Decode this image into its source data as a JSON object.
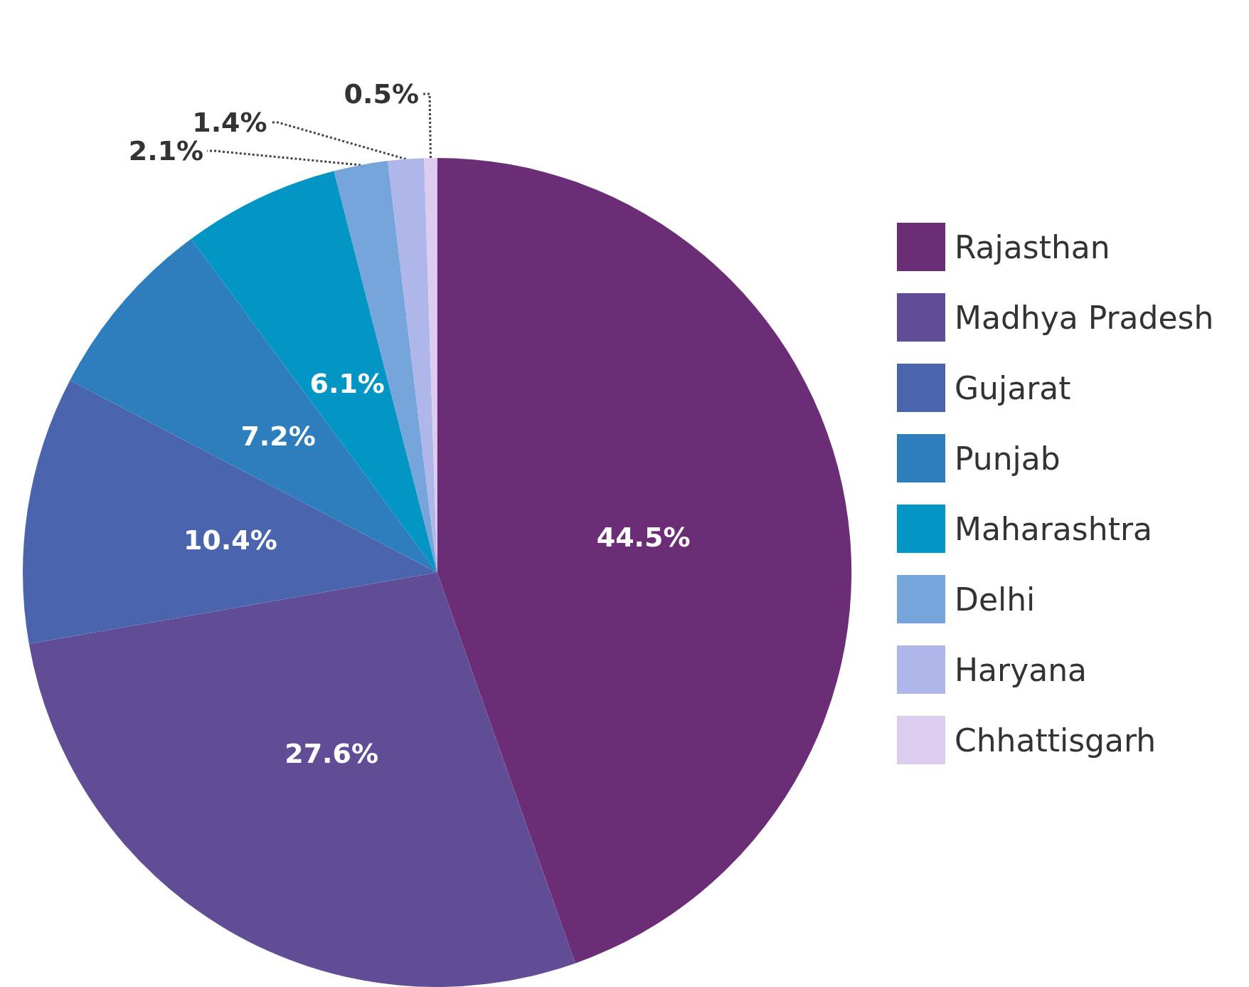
{
  "chart_data": {
    "type": "pie",
    "categories": [
      "Rajasthan",
      "Madhya Pradesh",
      "Gujarat",
      "Punjab",
      "Maharashtra",
      "Delhi",
      "Haryana",
      "Chhattisgarh"
    ],
    "values": [
      44.5,
      27.6,
      10.4,
      7.2,
      6.1,
      2.1,
      1.4,
      0.5
    ],
    "colors": [
      "#6b2e76",
      "#614d96",
      "#4a64ae",
      "#2e7dbd",
      "#0395c4",
      "#75a5da",
      "#aeb6ea",
      "#dccdf0"
    ],
    "value_labels": [
      "44.5%",
      "27.6%",
      "10.4%",
      "7.2%",
      "6.1%",
      "2.1%",
      "1.4%",
      "0.5%"
    ],
    "legend": "right"
  }
}
